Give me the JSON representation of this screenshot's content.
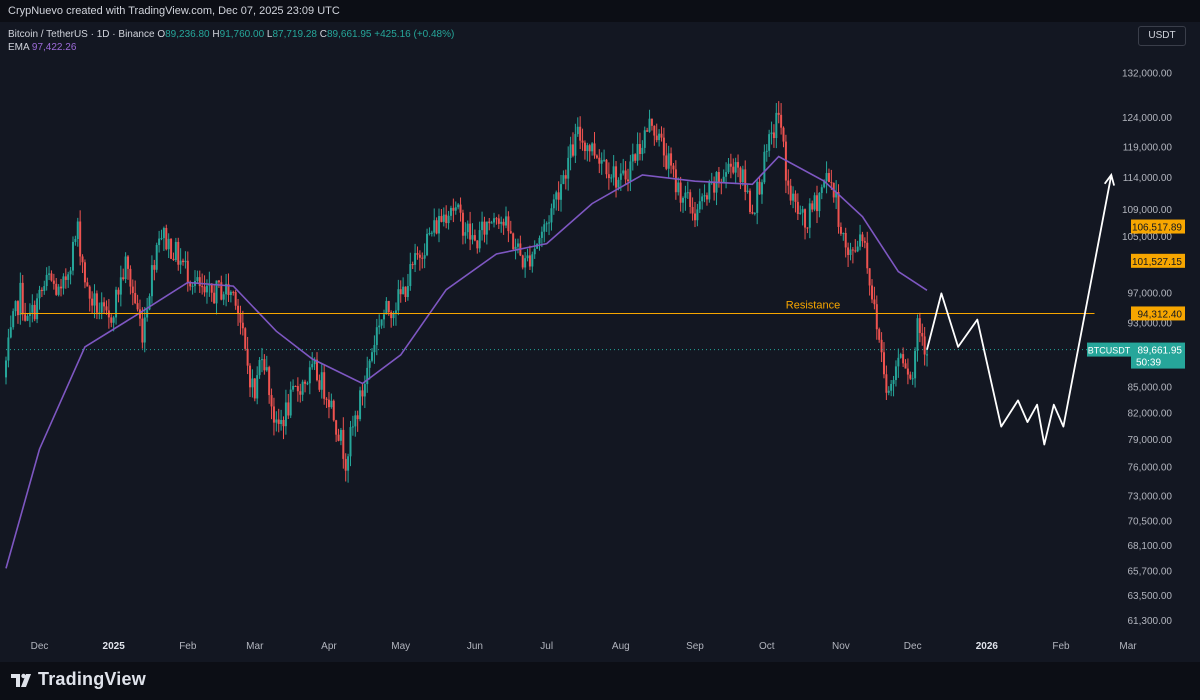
{
  "header": {
    "caption": "CrypNuevo created with TradingView.com, Dec 07, 2025 23:09 UTC"
  },
  "legend": {
    "symbol": "Bitcoin / TetherUS · 1D · Binance",
    "open_label": "O",
    "open": "89,236.80",
    "high_label": "H",
    "high": "91,760.00",
    "low_label": "L",
    "low": "87,719.28",
    "close_label": "C",
    "close": "89,661.95",
    "change": "+425.16 (+0.48%)",
    "ema_label": "EMA",
    "ema_value": "97,422.26"
  },
  "currency_button": "USDT",
  "footer": {
    "brand": "TradingView"
  },
  "colors": {
    "background": "#131722",
    "up": "#26a69a",
    "down": "#ef5350",
    "ema": "#7e57c2",
    "resistance": "#f7a600",
    "projection": "#ffffff"
  },
  "chart_data": {
    "type": "candlestick",
    "y_scale": "log",
    "y_ticks": [
      "132,000.00",
      "124,000.00",
      "119,000.00",
      "114,000.00",
      "109,000.00",
      "105,000.00",
      "97,000.00",
      "93,000.00",
      "85,000.00",
      "82,000.00",
      "79,000.00",
      "76,000.00",
      "73,000.00",
      "70,500.00",
      "68,100.00",
      "65,700.00",
      "63,500.00",
      "61,300.00"
    ],
    "x_ticks": [
      "Dec",
      "2025",
      "Feb",
      "Mar",
      "Apr",
      "May",
      "Jun",
      "Jul",
      "Aug",
      "Sep",
      "Oct",
      "Nov",
      "Dec",
      "2026",
      "Feb",
      "Mar"
    ],
    "price_path": [
      {
        "x": "2024-11-17",
        "y": 88000
      },
      {
        "x": "2024-11-20",
        "y": 93000
      },
      {
        "x": "2024-11-23",
        "y": 97000
      },
      {
        "x": "2024-11-26",
        "y": 93000
      },
      {
        "x": "2024-12-01",
        "y": 96500
      },
      {
        "x": "2024-12-05",
        "y": 99000
      },
      {
        "x": "2024-12-10",
        "y": 96500
      },
      {
        "x": "2024-12-17",
        "y": 106000
      },
      {
        "x": "2024-12-21",
        "y": 97000
      },
      {
        "x": "2024-12-30",
        "y": 93000
      },
      {
        "x": "2025-01-06",
        "y": 101000
      },
      {
        "x": "2025-01-13",
        "y": 92000
      },
      {
        "x": "2025-01-20",
        "y": 106000
      },
      {
        "x": "2025-01-24",
        "y": 104000
      },
      {
        "x": "2025-02-01",
        "y": 100000
      },
      {
        "x": "2025-02-08",
        "y": 96500
      },
      {
        "x": "2025-02-15",
        "y": 97500
      },
      {
        "x": "2025-02-21",
        "y": 97000
      },
      {
        "x": "2025-02-25",
        "y": 89000
      },
      {
        "x": "2025-03-01",
        "y": 84000
      },
      {
        "x": "2025-03-04",
        "y": 90000
      },
      {
        "x": "2025-03-10",
        "y": 80000
      },
      {
        "x": "2025-03-19",
        "y": 85000
      },
      {
        "x": "2025-03-26",
        "y": 87000
      },
      {
        "x": "2025-04-01",
        "y": 84000
      },
      {
        "x": "2025-04-08",
        "y": 77000
      },
      {
        "x": "2025-04-15",
        "y": 84500
      },
      {
        "x": "2025-04-22",
        "y": 93500
      },
      {
        "x": "2025-05-01",
        "y": 96500
      },
      {
        "x": "2025-05-10",
        "y": 103500
      },
      {
        "x": "2025-05-22",
        "y": 110000
      },
      {
        "x": "2025-06-01",
        "y": 104000
      },
      {
        "x": "2025-06-10",
        "y": 109000
      },
      {
        "x": "2025-06-22",
        "y": 101000
      },
      {
        "x": "2025-07-01",
        "y": 107000
      },
      {
        "x": "2025-07-14",
        "y": 121000
      },
      {
        "x": "2025-07-25",
        "y": 117000
      },
      {
        "x": "2025-08-01",
        "y": 113000
      },
      {
        "x": "2025-08-14",
        "y": 123500
      },
      {
        "x": "2025-08-24",
        "y": 113000
      },
      {
        "x": "2025-09-01",
        "y": 108500
      },
      {
        "x": "2025-09-10",
        "y": 113000
      },
      {
        "x": "2025-09-18",
        "y": 117000
      },
      {
        "x": "2025-09-25",
        "y": 109000
      },
      {
        "x": "2025-10-06",
        "y": 125000
      },
      {
        "x": "2025-10-10",
        "y": 112000
      },
      {
        "x": "2025-10-17",
        "y": 106500
      },
      {
        "x": "2025-10-27",
        "y": 115000
      },
      {
        "x": "2025-11-04",
        "y": 101500
      },
      {
        "x": "2025-11-10",
        "y": 106000
      },
      {
        "x": "2025-11-15",
        "y": 94500
      },
      {
        "x": "2025-11-21",
        "y": 84000
      },
      {
        "x": "2025-11-26",
        "y": 90000
      },
      {
        "x": "2025-12-01",
        "y": 86000
      },
      {
        "x": "2025-12-03",
        "y": 93500
      },
      {
        "x": "2025-12-07",
        "y": 89661.95
      }
    ],
    "ema_path": [
      {
        "x": "2024-11-17",
        "y": 66000
      },
      {
        "x": "2024-12-01",
        "y": 78000
      },
      {
        "x": "2024-12-20",
        "y": 90000
      },
      {
        "x": "2025-01-10",
        "y": 94000
      },
      {
        "x": "2025-02-01",
        "y": 98500
      },
      {
        "x": "2025-02-20",
        "y": 98000
      },
      {
        "x": "2025-03-10",
        "y": 92000
      },
      {
        "x": "2025-03-25",
        "y": 88500
      },
      {
        "x": "2025-04-15",
        "y": 85500
      },
      {
        "x": "2025-05-01",
        "y": 89000
      },
      {
        "x": "2025-05-20",
        "y": 97500
      },
      {
        "x": "2025-06-10",
        "y": 102500
      },
      {
        "x": "2025-07-01",
        "y": 104000
      },
      {
        "x": "2025-07-20",
        "y": 110000
      },
      {
        "x": "2025-08-10",
        "y": 114500
      },
      {
        "x": "2025-09-01",
        "y": 113500
      },
      {
        "x": "2025-09-25",
        "y": 113000
      },
      {
        "x": "2025-10-06",
        "y": 117500
      },
      {
        "x": "2025-10-25",
        "y": 113500
      },
      {
        "x": "2025-11-10",
        "y": 108000
      },
      {
        "x": "2025-11-25",
        "y": 100000
      },
      {
        "x": "2025-12-07",
        "y": 97422.26
      }
    ],
    "ema_value": 97422.26,
    "resistance": {
      "label": "Resistance",
      "value": 94312.4,
      "start": "2024-11-23",
      "end": "2026-02-15"
    },
    "last_price": 89661.95,
    "price_labels": [
      {
        "text": "106,517.89",
        "value": 106517.89,
        "kind": "orange"
      },
      {
        "text": "101,527.15",
        "value": 101527.15,
        "kind": "orange"
      },
      {
        "text": "94,312.40",
        "value": 94312.4,
        "kind": "orange"
      },
      {
        "symbol": "BTCUSDT",
        "text": "89,661.95",
        "value": 89661.95,
        "countdown": "50:39",
        "kind": "green"
      }
    ],
    "projection": [
      {
        "x": "2025-12-07",
        "y": 89661.95
      },
      {
        "x": "2025-12-13",
        "y": 97000
      },
      {
        "x": "2025-12-20",
        "y": 90000
      },
      {
        "x": "2025-12-28",
        "y": 93500
      },
      {
        "x": "2026-01-07",
        "y": 80500
      },
      {
        "x": "2026-01-14",
        "y": 83500
      },
      {
        "x": "2026-01-18",
        "y": 81000
      },
      {
        "x": "2026-01-22",
        "y": 83000
      },
      {
        "x": "2026-01-25",
        "y": 78500
      },
      {
        "x": "2026-01-29",
        "y": 83000
      },
      {
        "x": "2026-02-02",
        "y": 80500
      },
      {
        "x": "2026-02-22",
        "y": 114500
      }
    ]
  }
}
